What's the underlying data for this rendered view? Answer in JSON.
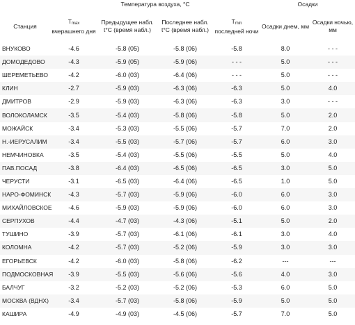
{
  "header": {
    "air_temp_group": "Температура воздуха, °C",
    "precip_group": "Осадки",
    "station": "Станция",
    "tmax_main": "T",
    "tmax_sub": "max",
    "tmax_rest": "вчерашнего дня",
    "prev_obs": "Предыдущее набл. t°C (время набл.)",
    "last_obs": "Последнее набл. t°C (время набл.)",
    "tmin_main": "T",
    "tmin_sub": "min",
    "tmin_rest": "последней ночи",
    "precip_day": "Осадки днем, мм",
    "precip_night": "Осадки ночью, мм"
  },
  "rows": [
    {
      "station": "ВНУКОВО",
      "tmax": "-4.6",
      "prev": "-5.8 (05)",
      "last": "-5.8 (06)",
      "tmin": "-5.8",
      "pday": "8.0",
      "pnight": "- - -"
    },
    {
      "station": "ДОМОДЕДОВО",
      "tmax": "-4.3",
      "prev": "-5.9 (05)",
      "last": "-5.9 (06)",
      "tmin": "- - -",
      "pday": "5.0",
      "pnight": "- - -"
    },
    {
      "station": "ШЕРЕМЕТЬЕВО",
      "tmax": "-4.2",
      "prev": "-6.0 (03)",
      "last": "-6.4 (06)",
      "tmin": "- - -",
      "pday": "5.0",
      "pnight": "- - -"
    },
    {
      "station": "КЛИН",
      "tmax": "-2.7",
      "prev": "-5.9 (03)",
      "last": "-6.3 (06)",
      "tmin": "-6.3",
      "pday": "5.0",
      "pnight": "4.0"
    },
    {
      "station": "ДМИТРОВ",
      "tmax": "-2.9",
      "prev": "-5.9 (03)",
      "last": "-6.3 (06)",
      "tmin": "-6.3",
      "pday": "3.0",
      "pnight": "- - -"
    },
    {
      "station": "ВОЛОКОЛАМСК",
      "tmax": "-3.5",
      "prev": "-5.4 (03)",
      "last": "-5.8 (06)",
      "tmin": "-5.8",
      "pday": "5.0",
      "pnight": "2.0"
    },
    {
      "station": "МОЖАЙСК",
      "tmax": "-3.4",
      "prev": "-5.3 (03)",
      "last": "-5.5 (06)",
      "tmin": "-5.7",
      "pday": "7.0",
      "pnight": "2.0"
    },
    {
      "station": "Н.-ИЕРУСАЛИМ",
      "tmax": "-3.4",
      "prev": "-5.5 (03)",
      "last": "-5.7 (06)",
      "tmin": "-5.7",
      "pday": "6.0",
      "pnight": "3.0"
    },
    {
      "station": "НЕМЧИНОВКА",
      "tmax": "-3.5",
      "prev": "-5.4 (03)",
      "last": "-5.5 (06)",
      "tmin": "-5.5",
      "pday": "5.0",
      "pnight": "4.0"
    },
    {
      "station": "ПАВ.ПОСАД",
      "tmax": "-3.8",
      "prev": "-6.4 (03)",
      "last": "-6.5 (06)",
      "tmin": "-6.5",
      "pday": "3.0",
      "pnight": "5.0"
    },
    {
      "station": "ЧЕРУСТИ",
      "tmax": "-3.1",
      "prev": "-6.5 (03)",
      "last": "-6.4 (06)",
      "tmin": "-6.5",
      "pday": "1.0",
      "pnight": "5.0"
    },
    {
      "station": "НАРО-ФОМИНСК",
      "tmax": "-4.3",
      "prev": "-5.7 (03)",
      "last": "-5.9 (06)",
      "tmin": "-6.0",
      "pday": "6.0",
      "pnight": "3.0"
    },
    {
      "station": "МИХАЙЛОВСКОЕ",
      "tmax": "-4.6",
      "prev": "-5.9 (03)",
      "last": "-5.9 (06)",
      "tmin": "-6.0",
      "pday": "6.0",
      "pnight": "3.0"
    },
    {
      "station": "СЕРПУХОВ",
      "tmax": "-4.4",
      "prev": "-4.7 (03)",
      "last": "-4.3 (06)",
      "tmin": "-5.1",
      "pday": "5.0",
      "pnight": "2.0"
    },
    {
      "station": "ТУШИНО",
      "tmax": "-3.9",
      "prev": "-5.7 (03)",
      "last": "-6.1 (06)",
      "tmin": "-6.1",
      "pday": "3.0",
      "pnight": "4.0"
    },
    {
      "station": "КОЛОМНА",
      "tmax": "-4.2",
      "prev": "-5.7 (03)",
      "last": "-5.2 (06)",
      "tmin": "-5.9",
      "pday": "3.0",
      "pnight": "3.0"
    },
    {
      "station": "ЕГОРЬЕВСК",
      "tmax": "-4.2",
      "prev": "-6.0 (03)",
      "last": "-5.8 (06)",
      "tmin": "-6.2",
      "pday": "---",
      "pnight": "---"
    },
    {
      "station": "ПОДМОСКОВНАЯ",
      "tmax": "-3.9",
      "prev": "-5.5 (03)",
      "last": "-5.6 (06)",
      "tmin": "-5.6",
      "pday": "4.0",
      "pnight": "3.0"
    },
    {
      "station": "БАЛЧУГ",
      "tmax": "-3.2",
      "prev": "-5.2 (03)",
      "last": "-5.2 (06)",
      "tmin": "-5.3",
      "pday": "6.0",
      "pnight": "5.0"
    },
    {
      "station": "МОСКВА (ВДНХ)",
      "tmax": "-3.4",
      "prev": "-5.7 (03)",
      "last": "-5.8 (06)",
      "tmin": "-5.9",
      "pday": "5.0",
      "pnight": "5.0"
    },
    {
      "station": "КАШИРА",
      "tmax": "-4.9",
      "prev": "-4.9 (03)",
      "last": "-4.5 (06)",
      "tmin": "-5.7",
      "pday": "7.0",
      "pnight": "5.0"
    }
  ]
}
